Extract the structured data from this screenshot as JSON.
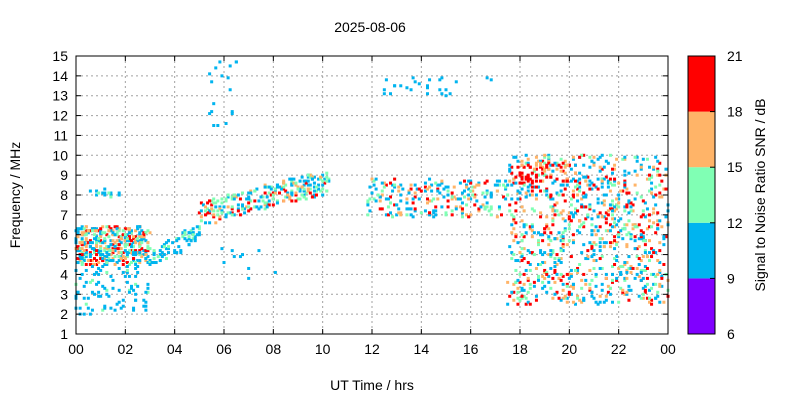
{
  "chart_data": {
    "type": "heatmap",
    "title": "2025-08-06",
    "xlabel": "UT Time / hrs",
    "ylabel": "Frequency / MHz",
    "colorbar_label": "Signal to Noise Ratio SNR / dB",
    "xlim": [
      0,
      24
    ],
    "ylim": [
      1,
      15
    ],
    "xticks": [
      "00",
      "02",
      "04",
      "06",
      "08",
      "10",
      "12",
      "14",
      "16",
      "18",
      "20",
      "22",
      "00"
    ],
    "yticks": [
      "1",
      "2",
      "3",
      "4",
      "5",
      "6",
      "7",
      "8",
      "9",
      "10",
      "11",
      "12",
      "13",
      "14",
      "15"
    ],
    "grid": true,
    "colorbar": {
      "ticks": [
        "6",
        "9",
        "12",
        "15",
        "18",
        "21"
      ],
      "bands": [
        {
          "min": 6,
          "max": 9,
          "color": "#8000ff"
        },
        {
          "min": 9,
          "max": 12,
          "color": "#00b4ef"
        },
        {
          "min": 12,
          "max": 15,
          "color": "#80ffb4"
        },
        {
          "min": 15,
          "max": 18,
          "color": "#ffb468"
        },
        {
          "min": 18,
          "max": 21,
          "color": "#ff0000"
        }
      ]
    },
    "approximate_clusters": [
      {
        "t": [
          0.0,
          3.0
        ],
        "f": [
          4.5,
          6.4
        ],
        "snr": "mixed 10-20, many red"
      },
      {
        "t": [
          0.0,
          3.0
        ],
        "f": [
          1.8,
          4.5
        ],
        "snr": "sparse 9-12"
      },
      {
        "t": [
          0.6,
          1.8
        ],
        "f": [
          7.9,
          8.3
        ],
        "snr": "9-13"
      },
      {
        "t": [
          3.0,
          5.0
        ],
        "f": [
          4.0,
          6.4
        ],
        "snr": "9-14, rising"
      },
      {
        "t": [
          5.0,
          10.3
        ],
        "f": [
          6.2,
          8.9
        ],
        "snr": "mixed 10-19, rising"
      },
      {
        "t": [
          5.4,
          7.0
        ],
        "f": [
          11.5,
          14.8
        ],
        "snr": "sparse 9-11"
      },
      {
        "t": [
          11.8,
          17.5
        ],
        "f": [
          6.9,
          8.8
        ],
        "snr": "mixed 10-20"
      },
      {
        "t": [
          12.5,
          17.0
        ],
        "f": [
          13.0,
          14.0
        ],
        "snr": "sparse 9-11"
      },
      {
        "t": [
          17.5,
          24.0
        ],
        "f": [
          2.5,
          10.0
        ],
        "snr": "dense mixed 9-20, reds near 9 MHz"
      }
    ]
  }
}
